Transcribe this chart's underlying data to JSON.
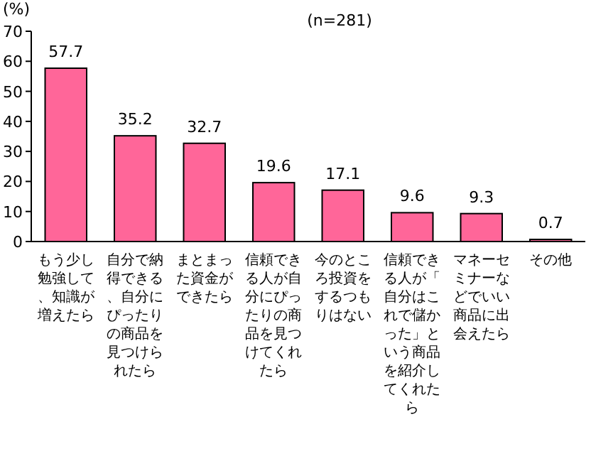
{
  "chart_data": {
    "type": "bar",
    "title": "(n=281)",
    "ylabel": "(%)",
    "categories": [
      "もう少し勉強して、知識が増えたら",
      "自分で納得できる、自分にぴったりの商品を見つけられたら",
      "まとまった資金ができたら",
      "信頼できる人が自分にぴったりの商品を見つけてくれたら",
      "今のところ投資をするつもりはない",
      "信頼できる人が「自分はこれで儲かった」という商品を紹介してくれたら",
      "マネーセミナーなどでいい商品に出会えたら",
      "その他"
    ],
    "values": [
      57.7,
      35.2,
      32.7,
      19.6,
      17.1,
      9.6,
      9.3,
      0.7
    ],
    "color": "#ff6699",
    "ylim": [
      0,
      70
    ],
    "yticks": [
      0,
      10,
      20,
      30,
      40,
      50,
      60,
      70
    ],
    "data_labels": true
  }
}
